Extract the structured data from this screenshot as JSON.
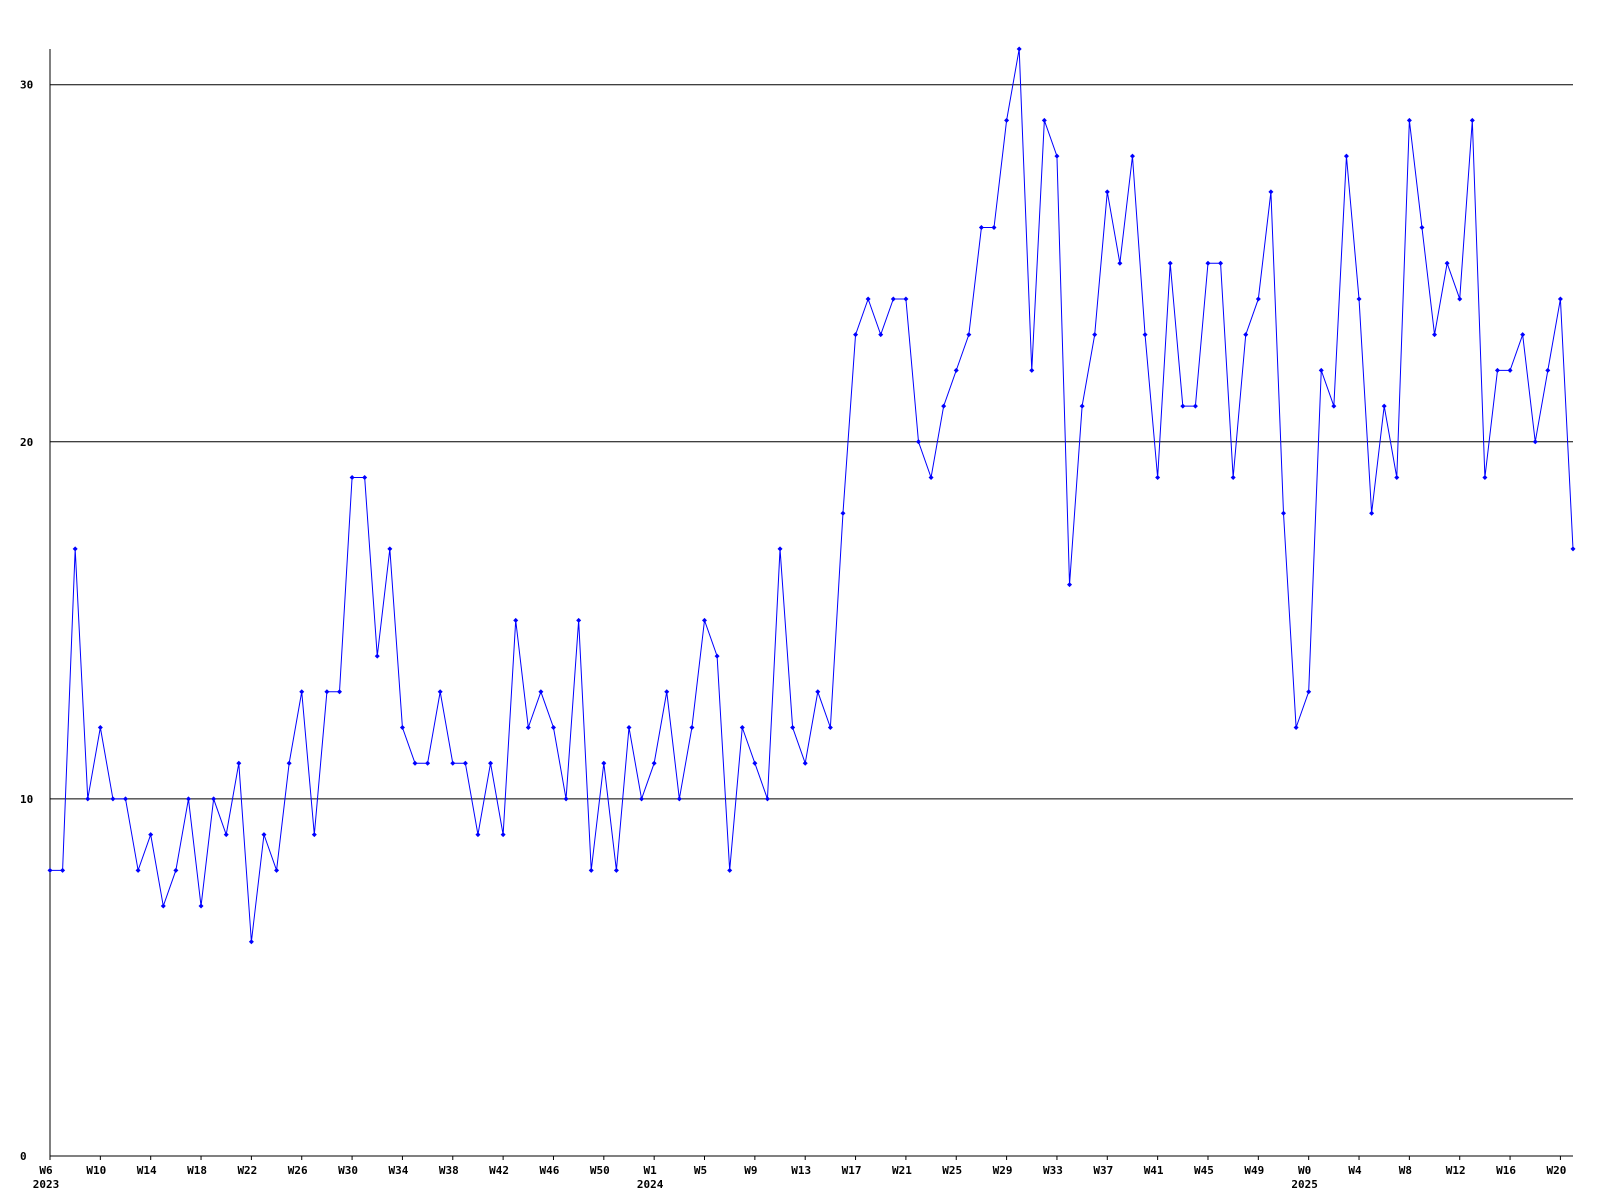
{
  "chart_data": {
    "type": "line",
    "categories": [
      "W6",
      null,
      null,
      null,
      "W10",
      null,
      null,
      null,
      "W14",
      null,
      null,
      null,
      "W18",
      null,
      null,
      null,
      "W22",
      null,
      null,
      null,
      "W26",
      null,
      null,
      null,
      "W30",
      null,
      null,
      null,
      "W34",
      null,
      null,
      null,
      "W38",
      null,
      null,
      null,
      "W42",
      null,
      null,
      null,
      "W46",
      null,
      null,
      null,
      "W50",
      null,
      null,
      null,
      "W1",
      null,
      null,
      null,
      "W5",
      null,
      null,
      null,
      "W9",
      null,
      null,
      null,
      "W13",
      null,
      null,
      null,
      "W17",
      null,
      null,
      null,
      "W21",
      null,
      null,
      null,
      "W25",
      null,
      null,
      null,
      "W29",
      null,
      null,
      null,
      "W33",
      null,
      null,
      null,
      "W37",
      null,
      null,
      null,
      "W41",
      null,
      null,
      null,
      "W45",
      null,
      null,
      null,
      "W49",
      null,
      null,
      null,
      "W0",
      null,
      null,
      null,
      "W4",
      null,
      null,
      null,
      "W8",
      null,
      null,
      null,
      "W12",
      null,
      null,
      null,
      "W16",
      null,
      null,
      null,
      "W20",
      null
    ],
    "years": [
      "2023",
      null,
      null,
      null,
      null,
      null,
      null,
      null,
      null,
      null,
      null,
      null,
      null,
      null,
      null,
      null,
      null,
      null,
      null,
      null,
      null,
      null,
      null,
      null,
      null,
      null,
      null,
      null,
      null,
      null,
      null,
      null,
      null,
      null,
      null,
      null,
      null,
      null,
      null,
      null,
      null,
      null,
      null,
      null,
      null,
      null,
      null,
      null,
      "2024",
      null,
      null,
      null,
      null,
      null,
      null,
      null,
      null,
      null,
      null,
      null,
      null,
      null,
      null,
      null,
      null,
      null,
      null,
      null,
      null,
      null,
      null,
      null,
      null,
      null,
      null,
      null,
      null,
      null,
      null,
      null,
      null,
      null,
      null,
      null,
      null,
      null,
      null,
      null,
      null,
      null,
      null,
      null,
      null,
      null,
      null,
      null,
      null,
      null,
      null,
      null,
      "2025",
      null,
      null,
      null,
      null,
      null,
      null,
      null,
      null,
      null,
      null,
      null,
      null,
      null,
      null,
      null,
      null,
      null,
      null,
      null,
      null,
      null
    ],
    "series": [
      {
        "color": "#0000ff",
        "values": [
          8,
          8,
          17,
          10,
          12,
          10,
          10,
          8,
          9,
          7,
          8,
          10,
          7,
          10,
          9,
          11,
          6,
          9,
          8,
          11,
          13,
          9,
          13,
          13,
          19,
          19,
          14,
          17,
          12,
          11,
          11,
          13,
          11,
          11,
          9,
          11,
          9,
          15,
          12,
          13,
          12,
          10,
          15,
          8,
          11,
          8,
          12,
          10,
          11,
          13,
          10,
          12,
          15,
          14,
          8,
          12,
          11,
          10,
          17,
          12,
          11,
          13,
          12,
          18,
          23,
          24,
          23,
          24,
          24,
          20,
          19,
          21,
          22,
          23,
          26,
          26,
          29,
          31,
          22,
          29,
          28,
          16,
          21,
          23,
          27,
          25,
          28,
          23,
          19,
          25,
          21,
          21,
          25,
          25,
          19,
          23,
          24,
          27,
          18,
          12,
          13,
          22,
          21,
          28,
          24,
          18,
          21,
          19,
          29,
          26,
          23,
          25,
          24,
          29,
          19,
          22,
          22,
          23,
          20,
          22,
          24,
          17
        ]
      }
    ],
    "ylim": [
      0,
      31
    ],
    "yticks": [
      0,
      10,
      20,
      30
    ],
    "grid": true
  }
}
